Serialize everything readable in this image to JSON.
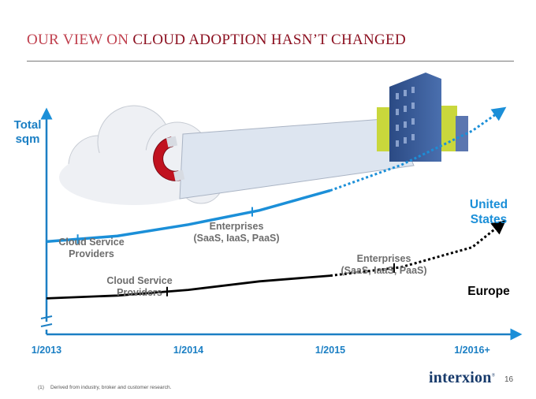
{
  "title": {
    "dim": "OUR VIEW ON",
    "main": "CLOUD ADOPTION HASN’T CHANGED"
  },
  "footnote": {
    "mark": "(1)",
    "text": "Derived from industry, broker and customer research."
  },
  "page_number": "16",
  "logo": {
    "text": "interxion",
    "mark": "®"
  },
  "colors": {
    "title": "#8b0f1f",
    "us_line": "#1b8fd8",
    "axis": "#1b7fc4",
    "eu_line": "#000000",
    "label_gray": "#6d6d6d"
  },
  "illustration": {
    "cloud": "cloud-icon",
    "magnet": "magnet-icon",
    "buildings": "data-center-buildings-icon"
  },
  "chart_data": {
    "type": "line",
    "ylabel": "Total sqm",
    "xlabel": "",
    "x_ticks": [
      "1/2013",
      "1/2014",
      "1/2015",
      "1/2016+"
    ],
    "series": [
      {
        "name": "United States",
        "color": "#1b8fd8",
        "style_note": "solid until 1/2015, dotted projection after",
        "x": [
          0.0,
          0.5,
          1.0,
          1.5,
          2.0,
          2.5,
          3.0,
          3.2
        ],
        "y": [
          0.62,
          0.66,
          0.74,
          0.84,
          0.98,
          1.16,
          1.4,
          1.54
        ]
      },
      {
        "name": "Europe",
        "color": "#000000",
        "style_note": "solid until 1/2015, dotted projection after",
        "x": [
          0.0,
          0.5,
          1.0,
          1.5,
          2.0,
          2.5,
          3.0,
          3.2
        ],
        "y": [
          0.22,
          0.24,
          0.28,
          0.34,
          0.38,
          0.44,
          0.58,
          0.74
        ]
      }
    ],
    "annotations": {
      "us_phase1": "Cloud Service\nProviders",
      "us_phase2": "Enterprises\n(SaaS, IaaS, PaaS)",
      "eu_phase1": "Cloud Service\nProviders",
      "eu_phase2": "Enterprises\n(SaaS, IaaS, PaaS)",
      "us_label": "United\nStates",
      "eu_label": "Europe"
    },
    "grid": false,
    "legend": "none (direct labels)"
  }
}
